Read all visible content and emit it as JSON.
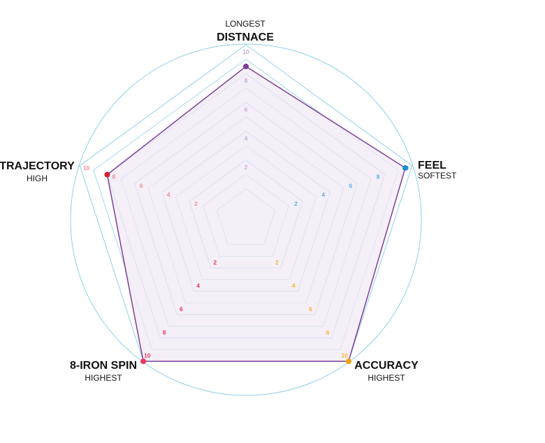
{
  "chart_data": {
    "type": "radar",
    "max": 10,
    "ticks": [
      2,
      4,
      6,
      8,
      10
    ],
    "axes": [
      {
        "key": "distance",
        "title": "DISTNACE",
        "subtitle": "LONGEST",
        "value": 8.5,
        "color": "#7b3f98",
        "tick_color": "#c7a9d9"
      },
      {
        "key": "feel",
        "title": "FEEL",
        "subtitle": "SOFTEST",
        "value": 9.5,
        "color": "#1a8fd0",
        "tick_color": "#5aaee3"
      },
      {
        "key": "accuracy",
        "title": "ACCURACY",
        "subtitle": "HIGHEST",
        "value": 10,
        "color": "#f5a300",
        "tick_color": "#f5b731"
      },
      {
        "key": "spin",
        "title": "8-IRON SPIN",
        "subtitle": "HIGHEST",
        "value": 10,
        "color": "#e8375a",
        "tick_color": "#e8375a"
      },
      {
        "key": "trajectory",
        "title": "TRAJECTORY",
        "subtitle": "HIGH",
        "value": 8,
        "color": "#d42035",
        "tick_color": "#f08a9c"
      }
    ]
  },
  "colors": {
    "grid": "#8fd0ea",
    "fill": "#f1e9f4",
    "outline": "#7b3f98"
  }
}
